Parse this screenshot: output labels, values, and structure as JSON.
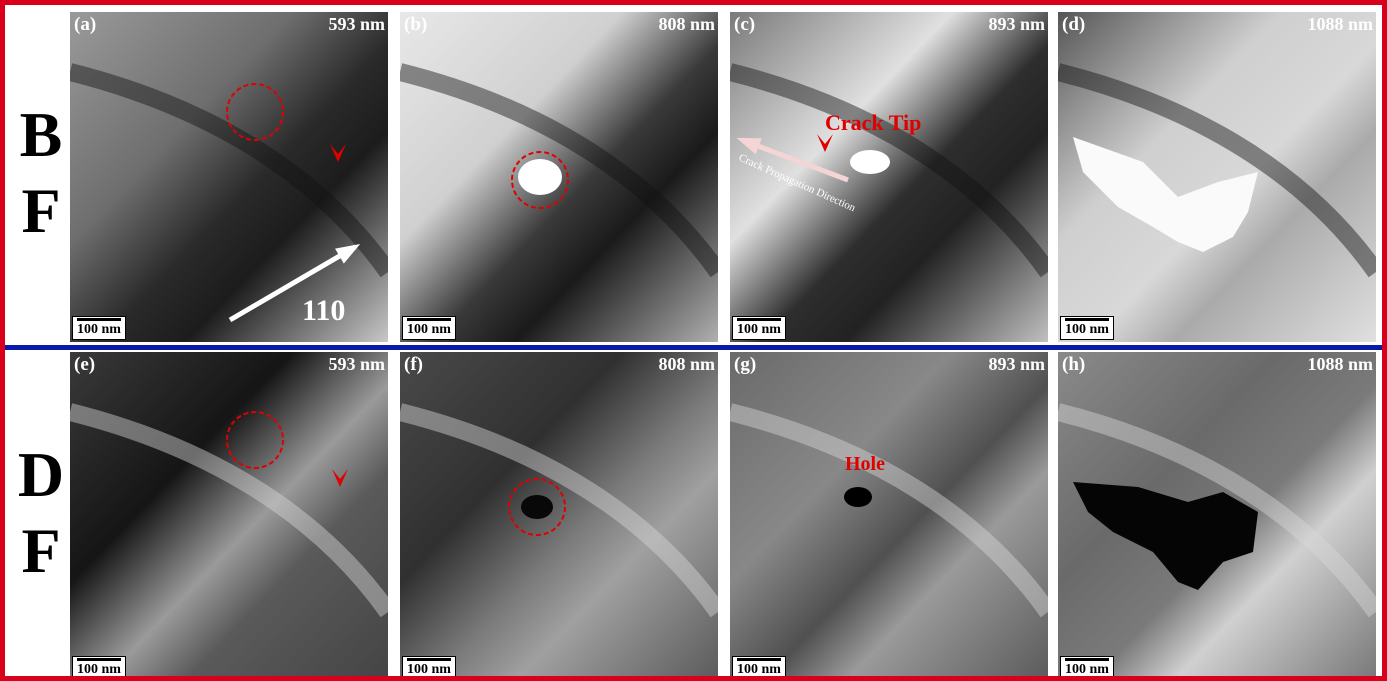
{
  "rows": [
    {
      "label": [
        "B",
        "F"
      ],
      "panels": [
        {
          "label": "(a)",
          "thickness": "593 nm",
          "scale_bar": "100 nm",
          "annotations": [
            "110"
          ]
        },
        {
          "label": "(b)",
          "thickness": "808 nm",
          "scale_bar": "100 nm"
        },
        {
          "label": "(c)",
          "thickness": "893 nm",
          "scale_bar": "100 nm",
          "annotations": [
            "Crack Tip",
            "Crack Propagation Direction"
          ]
        },
        {
          "label": "(d)",
          "thickness": "1088 nm",
          "scale_bar": "100 nm"
        }
      ]
    },
    {
      "label": [
        "D",
        "F"
      ],
      "panels": [
        {
          "label": "(e)",
          "thickness": "593 nm",
          "scale_bar": "100 nm"
        },
        {
          "label": "(f)",
          "thickness": "808 nm",
          "scale_bar": "100 nm"
        },
        {
          "label": "(g)",
          "thickness": "893 nm",
          "scale_bar": "100 nm",
          "annotations": [
            "Hole"
          ]
        },
        {
          "label": "(h)",
          "thickness": "1088 nm",
          "scale_bar": "100 nm"
        }
      ]
    }
  ]
}
